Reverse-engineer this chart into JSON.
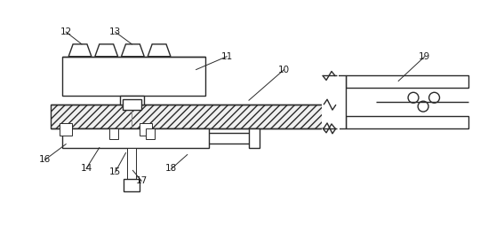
{
  "bg_color": "#ffffff",
  "line_color": "#2a2a2a",
  "lw": 1.0,
  "thin_lw": 0.7,
  "figsize": [
    5.58,
    2.63
  ],
  "dpi": 100
}
